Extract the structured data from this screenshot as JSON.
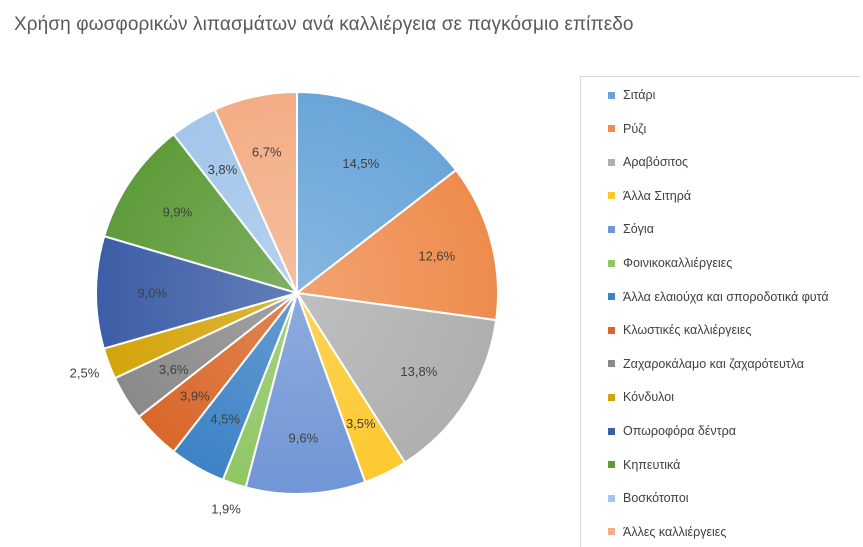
{
  "chart_data": {
    "type": "pie",
    "title": "Χρήση φωσφορικών λιπασμάτων ανά καλλιέργεια σε παγκόσμιο επίπεδο",
    "legend_position": "right",
    "slices": [
      {
        "name": "Σιτάρι",
        "value": 14.5,
        "label": "14,5%",
        "color": "#6aa5d9"
      },
      {
        "name": "Ρύζι",
        "value": 12.6,
        "label": "12,6%",
        "color": "#ee8c4d"
      },
      {
        "name": "Αραβόσιτος",
        "value": 13.8,
        "label": "13,8%",
        "color": "#afafaf"
      },
      {
        "name": "Άλλα Σιτηρά",
        "value": 3.5,
        "label": "3,5%",
        "color": "#fdc92f"
      },
      {
        "name": "Σόγια",
        "value": 9.6,
        "label": "9,6%",
        "color": "#7196d6"
      },
      {
        "name": "Φοινικοκαλλιέργειες",
        "value": 1.9,
        "label": "1,9%",
        "color": "#8fc764"
      },
      {
        "name": "Άλλα ελαιούχα και σποροδοτικά φυτά",
        "value": 4.5,
        "label": "4,5%",
        "color": "#3d83c6"
      },
      {
        "name": "Κλωστικές καλλιέργειες",
        "value": 3.9,
        "label": "3,9%",
        "color": "#d9672a"
      },
      {
        "name": "Ζαχαροκάλαμο και ζαχαρότευτλα",
        "value": 3.6,
        "label": "3,6%",
        "color": "#8a8a8a"
      },
      {
        "name": "Κόνδυλοι",
        "value": 2.5,
        "label": "2,5%",
        "color": "#d4a40a"
      },
      {
        "name": "Οπωροφόρα δέντρα",
        "value": 9.0,
        "label": "9,0%",
        "color": "#3c5ea7"
      },
      {
        "name": "Κηπευτικά",
        "value": 9.9,
        "label": "9,9%",
        "color": "#5e9c3a"
      },
      {
        "name": "Βοσκότοποι",
        "value": 3.8,
        "label": "3,8%",
        "color": "#a3c6ea"
      },
      {
        "name": "Άλλες καλλιέργειες",
        "value": 6.7,
        "label": "6,7%",
        "color": "#f3ad86"
      }
    ]
  }
}
